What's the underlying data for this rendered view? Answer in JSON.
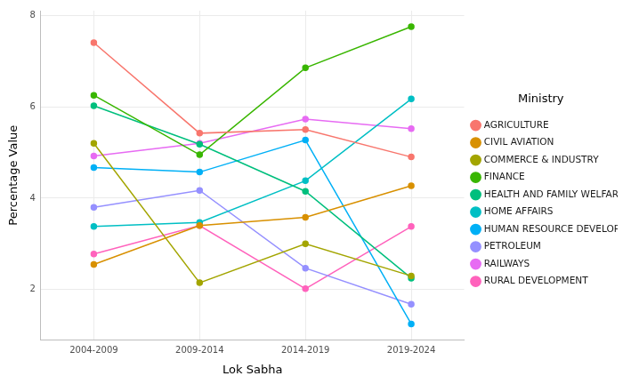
{
  "chart_data": {
    "type": "line",
    "x_label": "Lok Sabha",
    "y_label": "Percentage Value",
    "legend_title": "Ministry",
    "legend": "right",
    "grid": true,
    "marker": "circle",
    "categories": [
      "2004-2009",
      "2009-2014",
      "2014-2019",
      "2019-2024"
    ],
    "ylim": [
      0.9,
      8.1
    ],
    "yticks": [
      2,
      4,
      6,
      8
    ],
    "series": [
      {
        "name": "AGRICULTURE",
        "color": "#F8766D",
        "values": [
          7.4,
          5.42,
          5.5,
          4.9
        ]
      },
      {
        "name": "CIVIL AVIATION",
        "color": "#D89000",
        "values": [
          2.55,
          3.4,
          3.58,
          4.27
        ]
      },
      {
        "name": "COMMERCE & INDUSTRY",
        "color": "#A3A500",
        "values": [
          5.2,
          2.15,
          3.0,
          2.3
        ]
      },
      {
        "name": "FINANCE",
        "color": "#39B600",
        "values": [
          6.25,
          4.95,
          6.85,
          7.75
        ]
      },
      {
        "name": "HEALTH AND FAMILY WELFARE",
        "color": "#00BF7D",
        "values": [
          6.02,
          5.18,
          4.15,
          2.25
        ]
      },
      {
        "name": "HOME AFFAIRS",
        "color": "#00BFC4",
        "values": [
          3.38,
          3.47,
          4.38,
          6.17
        ]
      },
      {
        "name": "HUMAN RESOURCE DEVELOPMENT",
        "color": "#00B0F6",
        "values": [
          4.67,
          4.57,
          5.27,
          1.25
        ]
      },
      {
        "name": "PETROLEUM",
        "color": "#9590FF",
        "values": [
          3.8,
          4.17,
          2.47,
          1.68
        ]
      },
      {
        "name": "RAILWAYS",
        "color": "#E76BF3",
        "values": [
          4.92,
          5.2,
          5.73,
          5.52
        ]
      },
      {
        "name": "RURAL DEVELOPMENT",
        "color": "#FF62BC",
        "values": [
          2.78,
          3.4,
          2.02,
          3.38
        ]
      }
    ]
  }
}
